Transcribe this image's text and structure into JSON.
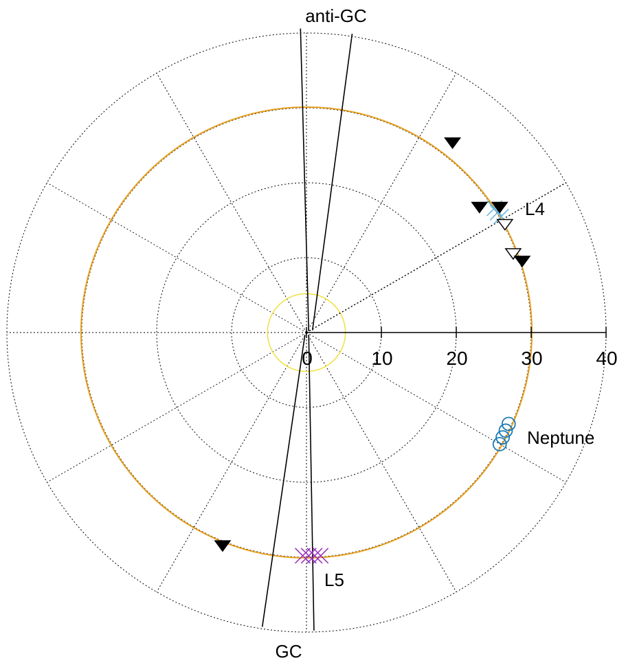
{
  "chart_data": {
    "type": "scatter",
    "projection": "polar",
    "radial_axis": {
      "tick_labels": [
        "0",
        "10",
        "20",
        "30",
        "40"
      ],
      "ticks": [
        0,
        10,
        20,
        30,
        40
      ],
      "max": 40,
      "grid_rings": [
        10,
        20,
        30,
        40
      ],
      "spokes_every_deg": 30,
      "grid": true
    },
    "annotations": {
      "anti_gc": "anti-GC",
      "gc": "GC",
      "l4": "L4",
      "l5": "L5",
      "neptune": "Neptune"
    },
    "reference_circles": [
      {
        "role": "orbit",
        "radius": 30.1,
        "color": "#e6a020"
      },
      {
        "role": "inner",
        "radius": 5.2,
        "color": "#f0e040"
      }
    ],
    "gc_lines": {
      "color": "#000000",
      "segments": [
        {
          "from": [
            0.8,
            0.3
          ],
          "to": [
            6.1,
            39.9
          ]
        },
        {
          "from": [
            -0.8,
            40.6
          ],
          "to": [
            0.3,
            0.2
          ]
        },
        {
          "from": [
            -0.2,
            -0.3
          ],
          "to": [
            -5.9,
            -39.3
          ]
        },
        {
          "from": [
            0.3,
            -0.3
          ],
          "to": [
            1.0,
            -39.8
          ]
        }
      ]
    },
    "l4_direction_deg": 30,
    "neptune_points": {
      "marker": "circle",
      "color": "#1a7ab5",
      "points": [
        [
          27.0,
          -12.2
        ],
        [
          26.6,
          -13.1
        ],
        [
          26.2,
          -14.0
        ],
        [
          25.8,
          -14.9
        ]
      ]
    },
    "l4_points": {
      "marker": "x",
      "color": "#66b8e0",
      "points": [
        [
          25.1,
          16.6
        ],
        [
          25.5,
          16.0
        ],
        [
          26.0,
          15.5
        ]
      ]
    },
    "l5_points": {
      "marker": "x",
      "color": "#9b30c0",
      "points": [
        [
          -0.5,
          -29.8
        ],
        [
          0.3,
          -29.8
        ],
        [
          1.1,
          -29.8
        ],
        [
          1.9,
          -29.8
        ]
      ]
    },
    "filled_triangles": [
      [
        19.5,
        25.3
      ],
      [
        23.1,
        16.7
      ],
      [
        25.8,
        16.7
      ],
      [
        28.8,
        9.5
      ],
      [
        -11.2,
        -28.5
      ]
    ],
    "open_triangles": [
      [
        26.5,
        14.4
      ],
      [
        27.6,
        10.5
      ]
    ]
  }
}
